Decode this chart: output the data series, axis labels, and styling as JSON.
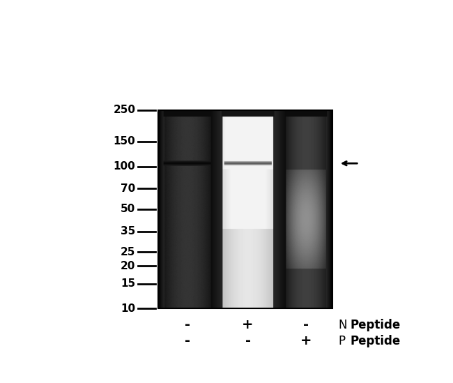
{
  "figure_width": 6.5,
  "figure_height": 5.49,
  "bg_color": "#ffffff",
  "ladder_marks": [
    250,
    150,
    100,
    70,
    50,
    35,
    25,
    20,
    15,
    10
  ],
  "lane_labels_row1": [
    "-",
    "+",
    "-"
  ],
  "lane_labels_row2": [
    "-",
    "-",
    "+"
  ],
  "n_label": "N",
  "p_label": "P",
  "peptide_label": "Peptide",
  "label_fontsize": 12,
  "marker_fontsize": 11,
  "sign_fontsize": 14
}
